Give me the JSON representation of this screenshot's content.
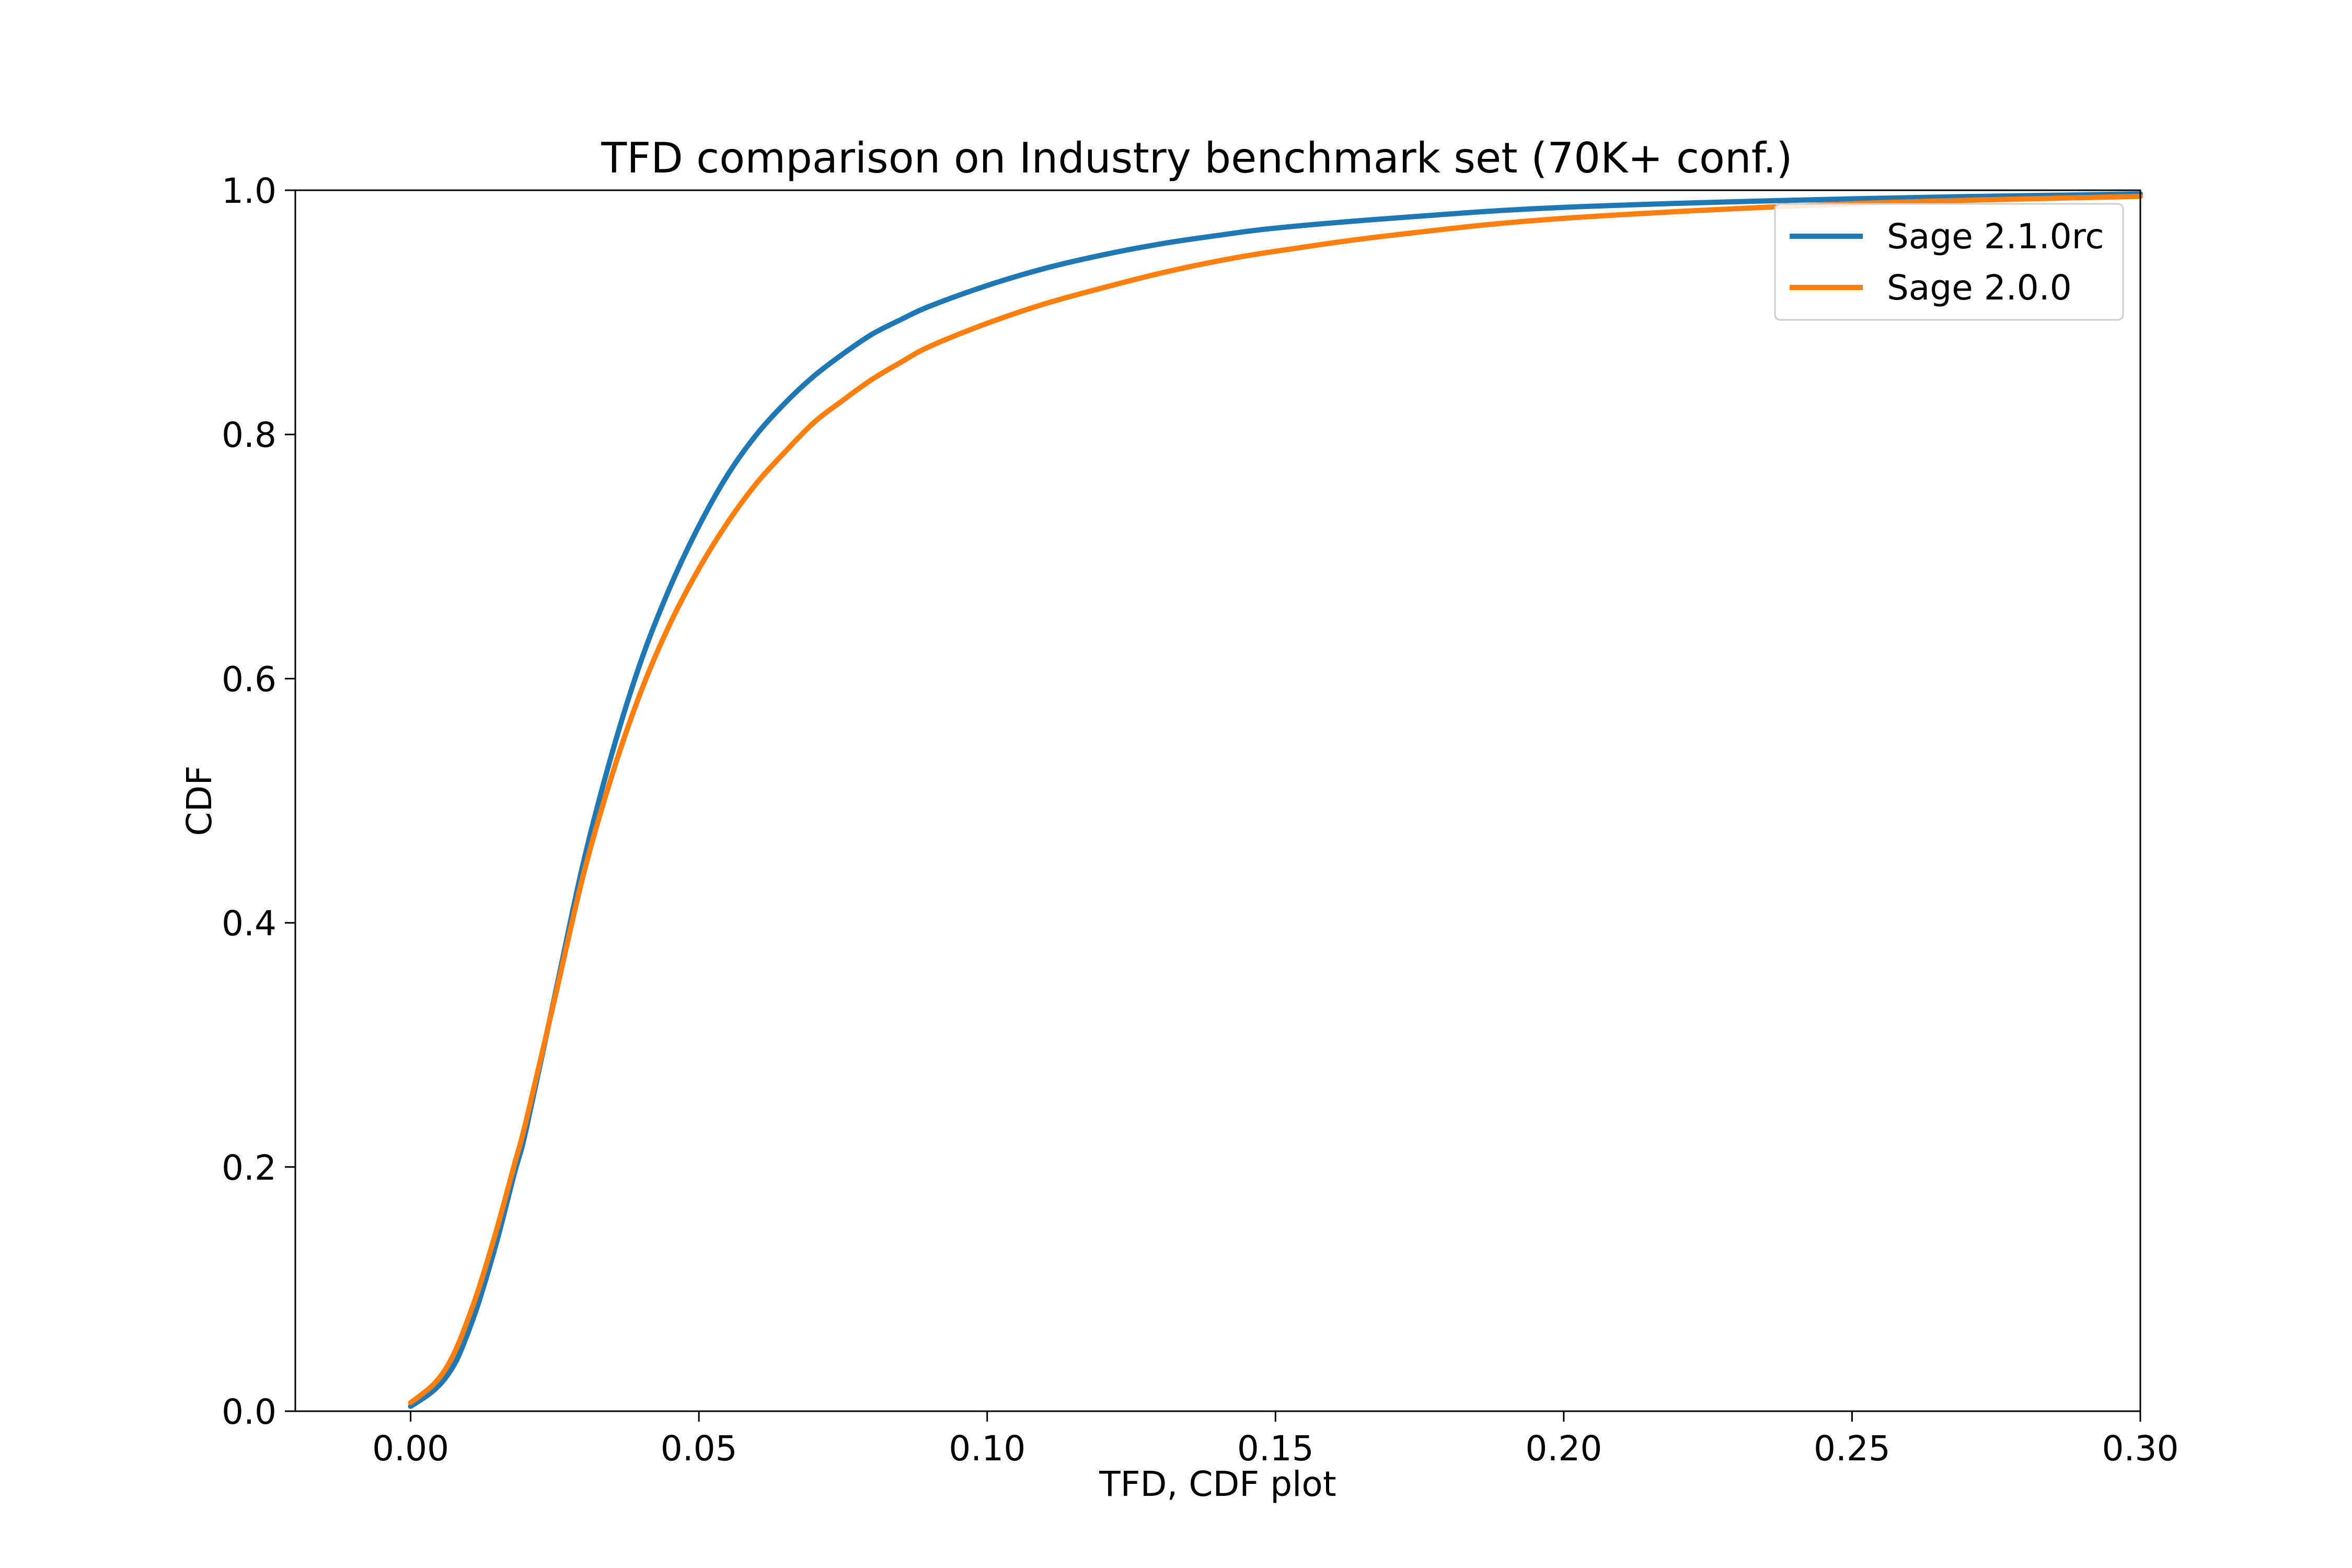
{
  "chart_data": {
    "type": "line",
    "title": "TFD comparison on Industry benchmark set (70K+ conf.)",
    "xlabel": "TFD, CDF plot",
    "ylabel": "CDF",
    "xlim": [
      -0.02,
      0.3
    ],
    "ylim": [
      0.0,
      1.0
    ],
    "xticks": [
      0.0,
      0.05,
      0.1,
      0.15,
      0.2,
      0.25,
      0.3
    ],
    "xtick_labels": [
      "0.00",
      "0.05",
      "0.10",
      "0.15",
      "0.20",
      "0.25",
      "0.30"
    ],
    "yticks": [
      0.0,
      0.2,
      0.4,
      0.6,
      0.8,
      1.0
    ],
    "ytick_labels": [
      "0.0",
      "0.2",
      "0.4",
      "0.6",
      "0.8",
      "1.0"
    ],
    "grid": false,
    "legend_position": "top-right",
    "series": [
      {
        "name": "Sage 2.1.0rc",
        "color": "#1f77b4",
        "x": [
          0.0,
          0.002,
          0.004,
          0.006,
          0.008,
          0.01,
          0.012,
          0.015,
          0.018,
          0.02,
          0.025,
          0.03,
          0.035,
          0.04,
          0.045,
          0.05,
          0.055,
          0.06,
          0.065,
          0.07,
          0.075,
          0.08,
          0.085,
          0.09,
          0.1,
          0.11,
          0.12,
          0.13,
          0.14,
          0.15,
          0.17,
          0.2,
          0.25,
          0.3
        ],
        "y": [
          0.004,
          0.01,
          0.017,
          0.027,
          0.042,
          0.065,
          0.092,
          0.14,
          0.195,
          0.23,
          0.34,
          0.45,
          0.54,
          0.615,
          0.675,
          0.725,
          0.767,
          0.8,
          0.826,
          0.848,
          0.866,
          0.882,
          0.894,
          0.905,
          0.922,
          0.936,
          0.947,
          0.956,
          0.963,
          0.969,
          0.977,
          0.986,
          0.993,
          0.997
        ]
      },
      {
        "name": "Sage 2.0.0",
        "color": "#ff7f0e",
        "x": [
          0.0,
          0.002,
          0.004,
          0.006,
          0.008,
          0.01,
          0.012,
          0.015,
          0.018,
          0.02,
          0.025,
          0.03,
          0.035,
          0.04,
          0.045,
          0.05,
          0.055,
          0.06,
          0.065,
          0.07,
          0.075,
          0.08,
          0.085,
          0.09,
          0.1,
          0.11,
          0.12,
          0.13,
          0.14,
          0.15,
          0.17,
          0.2,
          0.25,
          0.3
        ],
        "y": [
          0.007,
          0.014,
          0.022,
          0.034,
          0.052,
          0.076,
          0.103,
          0.15,
          0.202,
          0.237,
          0.338,
          0.44,
          0.522,
          0.59,
          0.645,
          0.69,
          0.728,
          0.76,
          0.786,
          0.81,
          0.828,
          0.845,
          0.859,
          0.872,
          0.891,
          0.907,
          0.92,
          0.932,
          0.942,
          0.95,
          0.963,
          0.977,
          0.989,
          0.995
        ]
      }
    ]
  }
}
